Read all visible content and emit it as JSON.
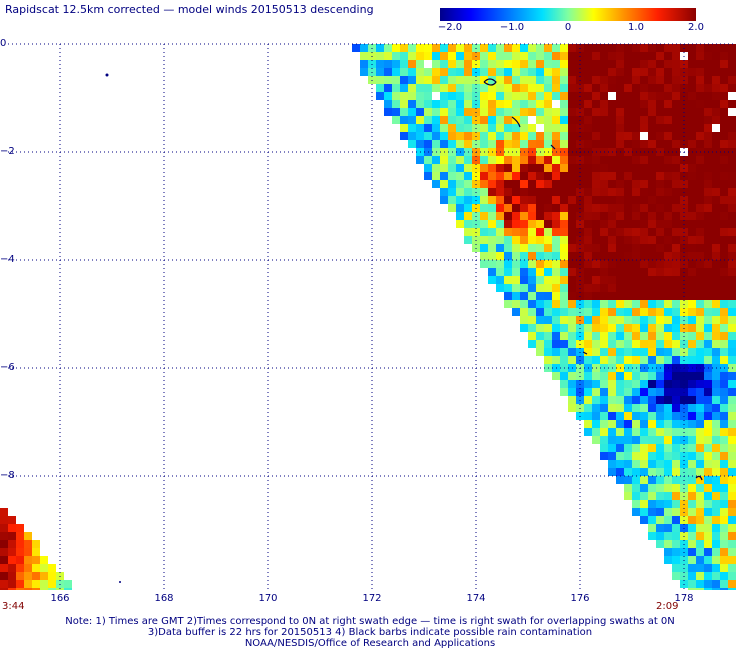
{
  "title": "Rapidscat 12.5km corrected — model winds 20150513 descending",
  "colorbar": {
    "min": -2.0,
    "max": 2.0,
    "ticks": [
      "−2.0",
      "−1.0",
      "0",
      "1.0",
      "2.0"
    ]
  },
  "map": {
    "lat_range": [
      -10,
      0
    ],
    "lon_range": [
      165,
      179
    ],
    "lat_labels": [
      "0",
      "−2",
      "−4",
      "−6",
      "−8",
      ""
    ],
    "lon_labels": [
      "166",
      "168",
      "170",
      "172",
      "174",
      "176",
      "178"
    ],
    "grid": "dotted",
    "field": "corrected minus model wind speed difference"
  },
  "times": {
    "left": "3:44",
    "right": "2:09"
  },
  "notes": {
    "line1": "Note: 1) Times are GMT 2)Times correspond to 0N at right swath edge — time is right swath for overlapping swaths at 0N",
    "line2": "3)Data buffer is 22 hrs for 20150513 4) Black barbs indicate possible rain contamination",
    "line3": "NOAA/NESDIS/Office of Research and Applications"
  },
  "colors": {
    "text": "#000080",
    "time": "#800000",
    "grid": "#000080"
  }
}
